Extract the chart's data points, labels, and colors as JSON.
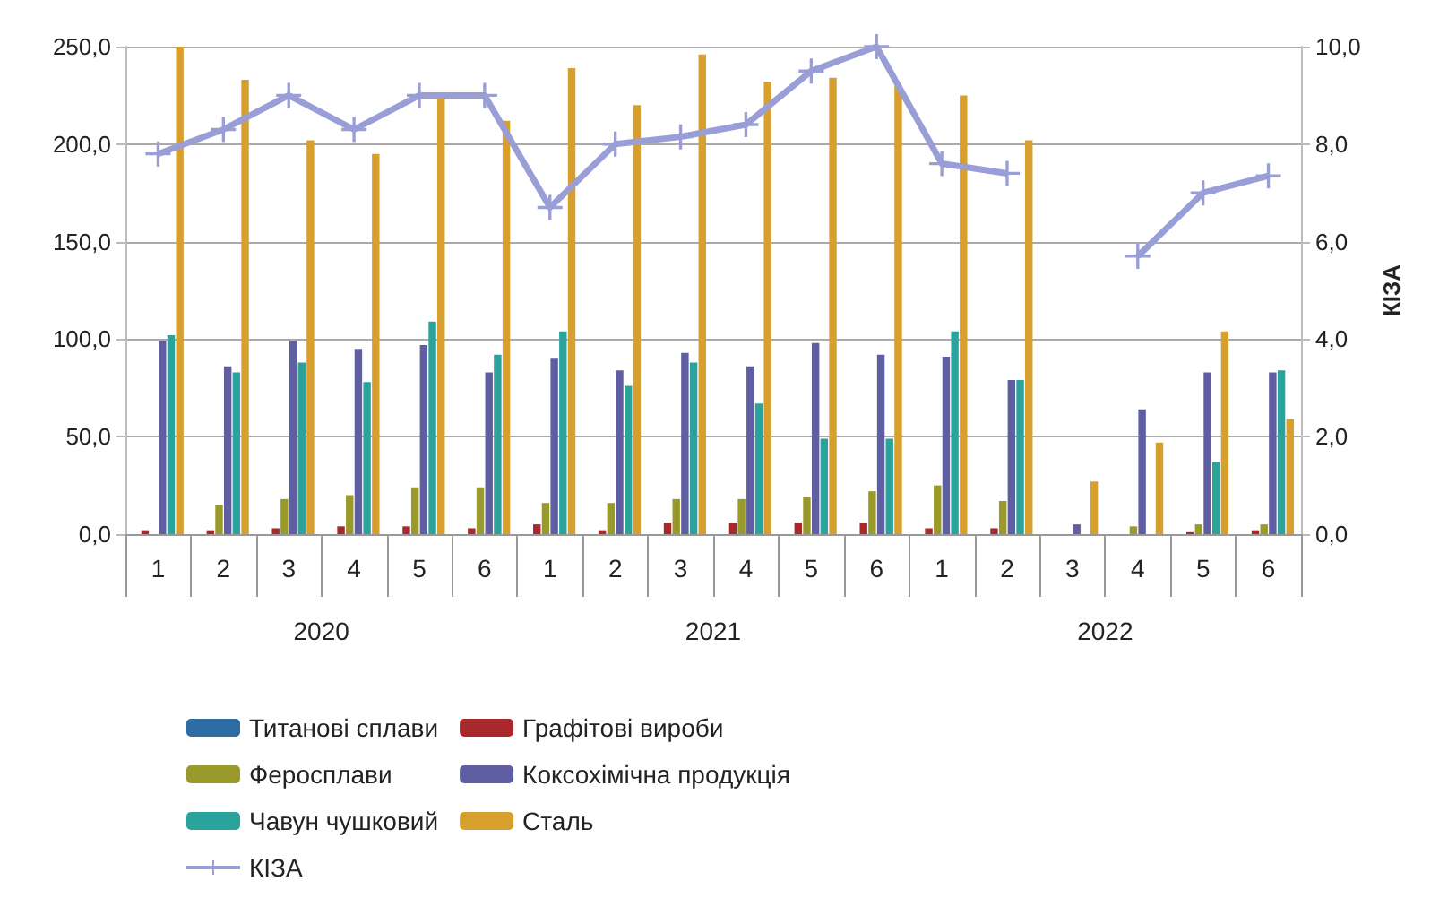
{
  "chart_data": {
    "type": "bar",
    "categories": [
      "1",
      "2",
      "3",
      "4",
      "5",
      "6",
      "1",
      "2",
      "3",
      "4",
      "5",
      "6",
      "1",
      "2",
      "3",
      "4",
      "5",
      "6"
    ],
    "annotations": [
      "2020",
      "2021",
      "2022"
    ],
    "ylim": [
      0,
      250
    ],
    "yticks": [
      {
        "value": 0,
        "label": "0,0"
      },
      {
        "value": 50,
        "label": "50,0"
      },
      {
        "value": 100,
        "label": "100,0"
      },
      {
        "value": 150,
        "label": "150,0"
      },
      {
        "value": 200,
        "label": "200,0"
      },
      {
        "value": 250,
        "label": "250,0"
      }
    ],
    "y2lim": [
      0,
      10
    ],
    "y2ticks": [
      {
        "value": 0,
        "label": "0,0"
      },
      {
        "value": 2,
        "label": "2,0"
      },
      {
        "value": 4,
        "label": "4,0"
      },
      {
        "value": 6,
        "label": "6,0"
      },
      {
        "value": 8,
        "label": "8,0"
      },
      {
        "value": 10,
        "label": "10,0"
      }
    ],
    "y2label": "КІЗА",
    "grid": "y",
    "legend": "bottom",
    "series": [
      {
        "name": "Титанові сплави",
        "color": "#2e6da4",
        "values": [
          0,
          0,
          0,
          0,
          0,
          0,
          0,
          0,
          0,
          0,
          0,
          0,
          0,
          0,
          0,
          0,
          0,
          0
        ]
      },
      {
        "name": "Графітові вироби",
        "color": "#a8282c",
        "values": [
          2,
          2,
          3,
          4,
          4,
          3,
          5,
          2,
          6,
          6,
          6,
          6,
          3,
          3,
          null,
          null,
          1,
          2
        ]
      },
      {
        "name": "Феросплави",
        "color": "#9a9a2c",
        "values": [
          0,
          15,
          18,
          20,
          24,
          24,
          16,
          16,
          18,
          18,
          19,
          22,
          25,
          17,
          null,
          4,
          5,
          5
        ]
      },
      {
        "name": "Коксохімічна продукція",
        "color": "#5f5ea2",
        "values": [
          99,
          86,
          99,
          95,
          97,
          83,
          90,
          84,
          93,
          86,
          98,
          92,
          91,
          79,
          5,
          64,
          83,
          83
        ]
      },
      {
        "name": "Чавун чушковий",
        "color": "#2aa39c",
        "values": [
          102,
          83,
          88,
          78,
          109,
          92,
          104,
          76,
          88,
          67,
          49,
          49,
          104,
          79,
          null,
          null,
          37,
          84
        ]
      },
      {
        "name": "Сталь",
        "color": "#d69f2e",
        "values": [
          250,
          233,
          202,
          195,
          225,
          212,
          239,
          220,
          246,
          232,
          234,
          230,
          225,
          202,
          27,
          47,
          104,
          59
        ]
      },
      {
        "name": "КІЗА",
        "type": "line",
        "axis": "y2",
        "marker": "cross",
        "color": "#9a9ed6",
        "values": [
          7.8,
          8.3,
          9.0,
          8.3,
          9.0,
          9.0,
          6.7,
          8.0,
          8.15,
          8.4,
          9.5,
          10.0,
          7.6,
          7.4,
          null,
          5.7,
          7.0,
          7.35
        ]
      }
    ]
  }
}
